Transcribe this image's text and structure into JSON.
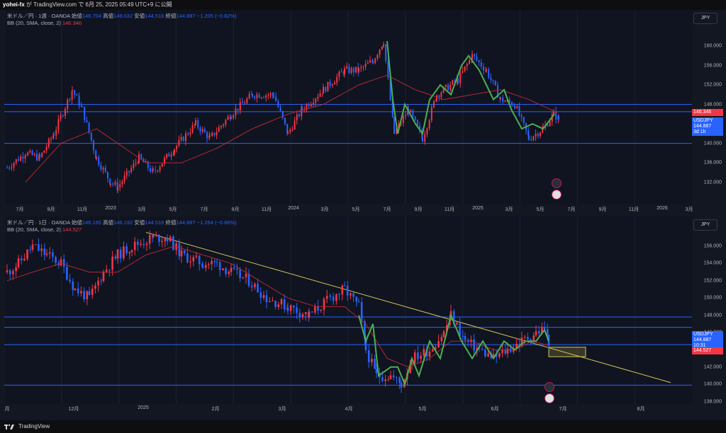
{
  "header": {
    "author": "yohei-fx",
    "text": "が TradingView.com で 6月 25, 2025 05:49 UTC+9 に公開"
  },
  "top": {
    "symbol_line": "米ドル／円 · 1週 · OANDA",
    "o_label": "始値",
    "o": "146.704",
    "h_label": "高値",
    "h": "148.032",
    "l_label": "安値",
    "l": "144.516",
    "c_label": "終値",
    "c": "144.887",
    "chg": "−1.205 (−0.82%)",
    "bb_label": "BB (20, SMA, close, 2)",
    "bb_value": "146.346",
    "currency": "JPY",
    "price_ticks": [
      "160.000",
      "156.000",
      "152.000",
      "148.000",
      "144.000",
      "140.000",
      "136.000",
      "132.000"
    ],
    "price_tick_values": [
      160,
      156,
      152,
      148,
      144,
      140,
      136,
      132
    ],
    "current_label": "USDJPY",
    "current_price": "144.887",
    "countdown": "3d 1h",
    "bb_tag": "146.346",
    "x_labels": [
      "7月",
      "9月",
      "11月",
      "2023",
      "3月",
      "5月",
      "7月",
      "9月",
      "11月",
      "2024",
      "3月",
      "5月",
      "7月",
      "9月",
      "11月",
      "2025",
      "3月",
      "5月",
      "7月",
      "9月",
      "11月",
      "2026",
      "3月"
    ]
  },
  "bottom": {
    "symbol_line": "米ドル／円 · 1日 · OANDA",
    "o_label": "始値",
    "o": "146.165",
    "h_label": "高値",
    "h": "146.192",
    "l_label": "安値",
    "l": "144.516",
    "c_label": "終値",
    "c": "144.887",
    "chg": "−1.264 (−0.86%)",
    "bb_label": "BB (20, SMA, close, 2)",
    "bb_value": "144.527",
    "currency": "JPY",
    "price_ticks": [
      "156.000",
      "154.000",
      "152.000",
      "150.000",
      "148.000",
      "146.000",
      "144.000",
      "142.000",
      "140.000",
      "138.000"
    ],
    "price_tick_values": [
      156,
      154,
      152,
      150,
      148,
      146,
      144,
      142,
      140,
      138
    ],
    "current_label": "USDJPY",
    "current_price": "144.887",
    "countdown": "10:31",
    "bb_tag": "144.527",
    "x_labels": [
      "月",
      "12月",
      "2025",
      "2月",
      "3月",
      "4月",
      "5月",
      "6月",
      "7月",
      "8月"
    ]
  },
  "footer": {
    "brand": "TradingView"
  },
  "colors": {
    "up": "#f23645",
    "down": "#2962ff",
    "bb": "#b22833",
    "wave": "#4caf50",
    "trend": "#d4c25a",
    "hline": "#2962ff"
  }
}
